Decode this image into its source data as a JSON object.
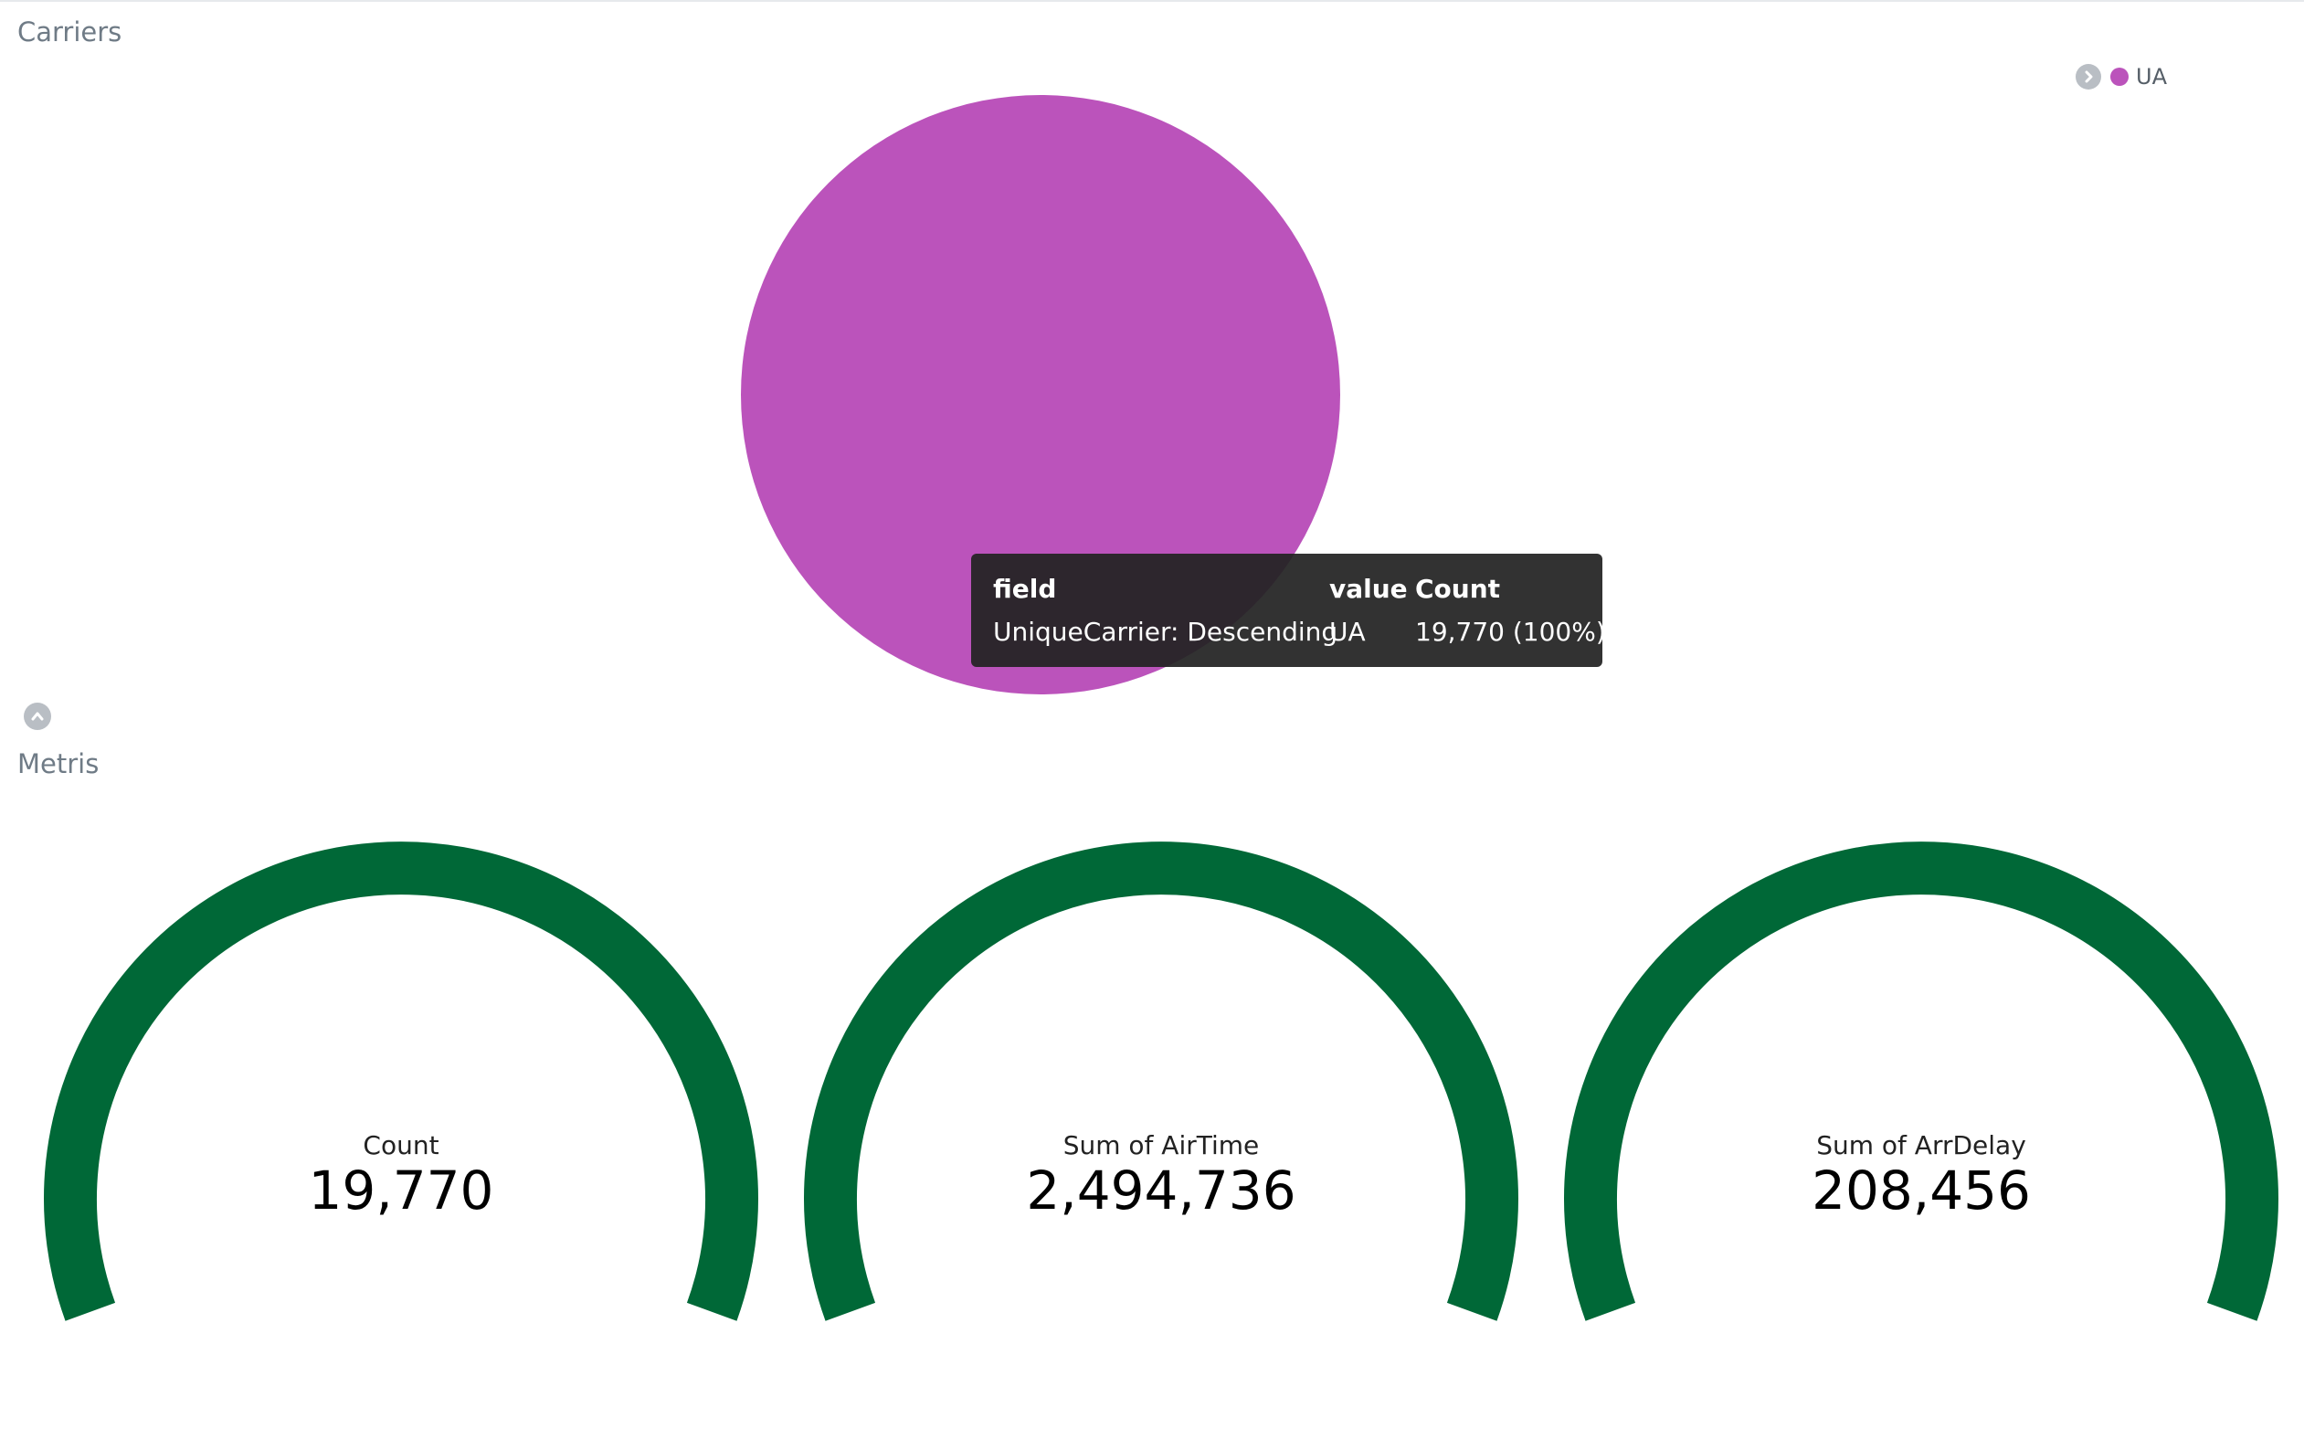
{
  "carriers_panel": {
    "title": "Carriers",
    "legend": [
      {
        "label": "UA",
        "color": "#bb53bb"
      }
    ],
    "tooltip": {
      "headers": [
        "field",
        "value",
        "Count"
      ],
      "row": [
        "UniqueCarrier: Descending",
        "UA",
        "19,770 (100%)"
      ]
    }
  },
  "chart_data": [
    {
      "type": "pie",
      "labels": [
        "UA"
      ],
      "values": [
        19770
      ],
      "colors": [
        "#bb53bb"
      ]
    }
  ],
  "metrics_panel": {
    "title": "Metris",
    "gauge_color": "#006837",
    "gauges": [
      {
        "label": "Count",
        "value": "19,770"
      },
      {
        "label": "Sum of AirTime",
        "value": "2,494,736"
      },
      {
        "label": "Sum of ArrDelay",
        "value": "208,456"
      }
    ]
  },
  "icons": {
    "legend_toggle": "chevron-right-icon",
    "panel_toggle": "chevron-up-icon"
  }
}
